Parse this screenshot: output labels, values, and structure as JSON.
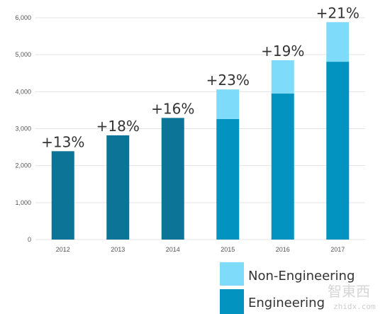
{
  "chart_data": {
    "type": "bar",
    "stacked": true,
    "categories": [
      "2012",
      "2013",
      "2014",
      "2015",
      "2016",
      "2017"
    ],
    "series": [
      {
        "name": "Engineering",
        "values": [
          2390,
          2820,
          3290,
          3260,
          3950,
          4810
        ]
      },
      {
        "name": "Non-Engineering",
        "values": [
          0,
          0,
          0,
          800,
          900,
          1070
        ]
      }
    ],
    "growth_labels": [
      "+13%",
      "+18%",
      "+16%",
      "+23%",
      "+19%",
      "+21%"
    ],
    "y_ticks": [
      "0",
      "1,000",
      "2,000",
      "3,000",
      "4,000",
      "5,000",
      "6,000"
    ],
    "ylim": [
      0,
      6000
    ],
    "grid": true,
    "legend_position": "bottom-right"
  },
  "colors": {
    "engineering_early": "#0b7497",
    "engineering_late": "#0393c0",
    "non_engineering": "#7edbfa",
    "grid": "#e3e3e3"
  },
  "watermark": {
    "chinese": "智東西",
    "url": "zhidx.com"
  }
}
